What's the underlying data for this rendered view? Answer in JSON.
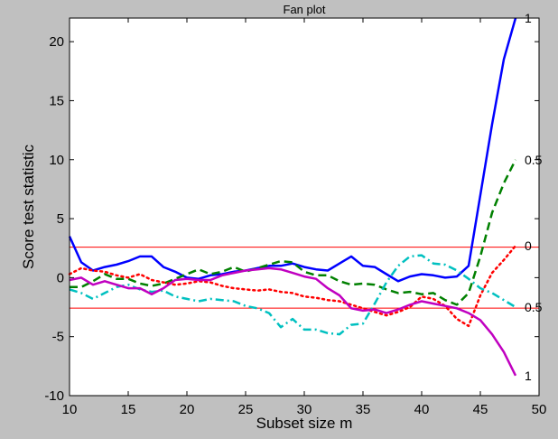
{
  "chart_data": {
    "type": "line",
    "title": "Fan plot",
    "xlabel": "Subset size m",
    "ylabel": "Score test statistic",
    "xlim": [
      10,
      50
    ],
    "ylim": [
      -10,
      22
    ],
    "xticks": [
      10,
      15,
      20,
      25,
      30,
      35,
      40,
      45,
      50
    ],
    "yticks": [
      -10,
      -5,
      0,
      5,
      10,
      15,
      20
    ],
    "grid": false,
    "reference_lines": [
      2.58,
      -2.58
    ],
    "reference_color": "#ff0000",
    "series": [
      {
        "name": "1",
        "color": "#0000ff",
        "dash": "solid",
        "x": [
          10,
          11,
          12,
          13,
          14,
          15,
          16,
          17,
          18,
          19,
          20,
          21,
          22,
          23,
          24,
          25,
          26,
          27,
          28,
          29,
          30,
          31,
          32,
          33,
          34,
          35,
          36,
          37,
          38,
          39,
          40,
          41,
          42,
          43,
          44,
          45,
          46,
          47,
          48
        ],
        "y": [
          3.5,
          1.3,
          0.6,
          0.9,
          1.1,
          1.4,
          1.8,
          1.8,
          0.9,
          0.5,
          0.0,
          -0.1,
          0.2,
          0.3,
          0.5,
          0.6,
          0.8,
          1.0,
          1.0,
          1.2,
          0.9,
          0.7,
          0.6,
          1.2,
          1.8,
          1.0,
          0.9,
          0.3,
          -0.3,
          0.1,
          0.3,
          0.2,
          0.0,
          0.1,
          1.0,
          7.0,
          13.0,
          18.5,
          22.0
        ]
      },
      {
        "name": "0.5",
        "color": "#008000",
        "dash": "dashed",
        "x": [
          10,
          11,
          12,
          13,
          14,
          15,
          16,
          17,
          18,
          19,
          20,
          21,
          22,
          23,
          24,
          25,
          26,
          27,
          28,
          29,
          30,
          31,
          32,
          33,
          34,
          35,
          36,
          37,
          38,
          39,
          40,
          41,
          42,
          43,
          44,
          45,
          46,
          47,
          48
        ],
        "y": [
          -0.8,
          -0.8,
          -0.3,
          0.3,
          -0.1,
          -0.1,
          -0.5,
          -0.7,
          -0.5,
          -0.1,
          0.3,
          0.7,
          0.3,
          0.5,
          0.9,
          0.5,
          0.8,
          1.1,
          1.4,
          1.3,
          0.5,
          0.2,
          0.2,
          -0.3,
          -0.6,
          -0.5,
          -0.6,
          -1.0,
          -1.3,
          -1.2,
          -1.4,
          -1.3,
          -1.9,
          -2.3,
          -1.3,
          1.8,
          5.5,
          8.0,
          10.0
        ]
      },
      {
        "name": "0",
        "color": "#ff0000",
        "dash": "dotted",
        "x": [
          10,
          11,
          12,
          13,
          14,
          15,
          16,
          17,
          18,
          19,
          20,
          21,
          22,
          23,
          24,
          25,
          26,
          27,
          28,
          29,
          30,
          31,
          32,
          33,
          34,
          35,
          36,
          37,
          38,
          39,
          40,
          41,
          42,
          43,
          44,
          45,
          46,
          47,
          48
        ],
        "y": [
          0.3,
          0.8,
          0.6,
          0.5,
          0.2,
          0.0,
          0.3,
          -0.2,
          -0.4,
          -0.6,
          -0.5,
          -0.3,
          -0.4,
          -0.7,
          -0.9,
          -1.0,
          -1.1,
          -1.0,
          -1.2,
          -1.3,
          -1.6,
          -1.7,
          -1.9,
          -2.0,
          -2.3,
          -2.6,
          -2.9,
          -3.2,
          -2.9,
          -2.5,
          -1.6,
          -1.8,
          -2.4,
          -3.5,
          -4.1,
          -1.5,
          0.4,
          1.5,
          2.7
        ]
      },
      {
        "name": "0.5",
        "color": "#00c0c0",
        "dash": "dashdot",
        "x": [
          10,
          11,
          12,
          13,
          14,
          15,
          16,
          17,
          18,
          19,
          20,
          21,
          22,
          23,
          24,
          25,
          26,
          27,
          28,
          29,
          30,
          31,
          32,
          33,
          34,
          35,
          36,
          37,
          38,
          39,
          40,
          41,
          42,
          43,
          44,
          45,
          46,
          47,
          48
        ],
        "y": [
          -1.0,
          -1.3,
          -1.8,
          -1.3,
          -0.8,
          -0.6,
          -1.0,
          -1.2,
          -1.1,
          -1.6,
          -1.8,
          -2.0,
          -1.8,
          -1.9,
          -2.0,
          -2.4,
          -2.6,
          -3.0,
          -4.2,
          -3.5,
          -4.4,
          -4.4,
          -4.7,
          -4.8,
          -4.0,
          -3.9,
          -2.2,
          -0.4,
          1.0,
          1.8,
          1.9,
          1.2,
          1.1,
          0.6,
          -0.1,
          -0.9,
          -1.3,
          -1.9,
          -2.5
        ]
      },
      {
        "name": "1",
        "color": "#c000c0",
        "dash": "solid",
        "x": [
          10,
          11,
          12,
          13,
          14,
          15,
          16,
          17,
          18,
          19,
          20,
          21,
          22,
          23,
          24,
          25,
          26,
          27,
          28,
          29,
          30,
          31,
          32,
          33,
          34,
          35,
          36,
          37,
          38,
          39,
          40,
          41,
          42,
          43,
          44,
          45,
          46,
          47,
          48
        ],
        "y": [
          -0.2,
          0.0,
          -0.6,
          -0.3,
          -0.6,
          -0.9,
          -0.9,
          -1.4,
          -0.9,
          -0.2,
          -0.1,
          -0.2,
          -0.2,
          0.2,
          0.4,
          0.6,
          0.7,
          0.8,
          0.7,
          0.4,
          0.1,
          -0.1,
          -0.9,
          -1.5,
          -2.6,
          -2.8,
          -2.7,
          -3.0,
          -2.7,
          -2.3,
          -2.0,
          -2.2,
          -2.4,
          -2.6,
          -3.0,
          -3.6,
          -4.8,
          -6.3,
          -8.3
        ]
      }
    ]
  }
}
